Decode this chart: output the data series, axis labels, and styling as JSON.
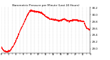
{
  "title": "Barometric Pressure per Minute (Last 24 Hours)",
  "line_color": "#ff0000",
  "bg_color": "#ffffff",
  "grid_color": "#bbbbbb",
  "ylim": [
    28.88,
    30.22
  ],
  "ytick_values": [
    29.0,
    29.2,
    29.4,
    29.6,
    29.8,
    30.0,
    30.2
  ],
  "key_x": [
    0,
    50,
    100,
    150,
    220,
    300,
    380,
    430,
    460,
    500,
    580,
    660,
    720,
    780,
    860,
    940,
    1020,
    1100,
    1180,
    1260,
    1340,
    1380,
    1440
  ],
  "key_y": [
    29.05,
    28.93,
    28.91,
    28.95,
    29.15,
    29.5,
    29.8,
    30.0,
    30.1,
    30.12,
    30.08,
    30.05,
    29.95,
    29.88,
    29.85,
    29.82,
    29.87,
    29.8,
    29.85,
    29.82,
    29.8,
    29.6,
    29.55
  ],
  "noise_seed": 42,
  "noise_scale": 0.012,
  "num_points": 1440,
  "xtick_interval": 60,
  "title_fontsize": 3.0,
  "ytick_fontsize": 2.8,
  "xtick_fontsize": 2.0,
  "linewidth": 0.6
}
